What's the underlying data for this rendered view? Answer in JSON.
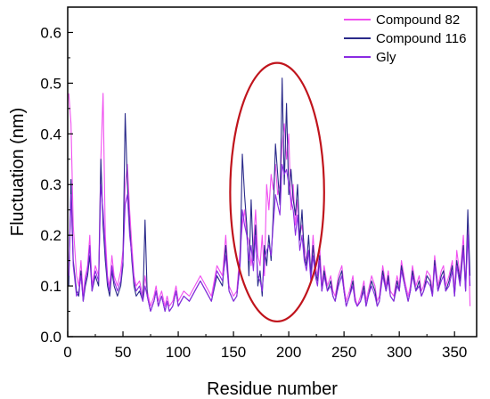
{
  "chart_data": {
    "type": "line",
    "xlabel": "Residue number",
    "ylabel": "Fluctuation (nm)",
    "xlim": [
      0,
      370
    ],
    "ylim": [
      0,
      0.65
    ],
    "xticks": [
      "0",
      "50",
      "100",
      "150",
      "200",
      "250",
      "300",
      "350"
    ],
    "yticks": [
      "0.0",
      "0.1",
      "0.2",
      "0.3",
      "0.4",
      "0.5",
      "0.6"
    ],
    "legend_position": "top-right",
    "annotation": {
      "shape": "ellipse",
      "color": "#c0141c",
      "x_range": [
        147,
        232
      ],
      "y_range": [
        0.03,
        0.54
      ]
    },
    "series": [
      {
        "name": "Compound 82",
        "color": "#f050f0",
        "x": [
          1,
          3,
          5,
          8,
          10,
          12,
          14,
          16,
          18,
          20,
          22,
          25,
          28,
          30,
          32,
          34,
          36,
          38,
          40,
          42,
          45,
          48,
          50,
          52,
          54,
          56,
          58,
          60,
          62,
          65,
          68,
          70,
          72,
          75,
          78,
          80,
          82,
          85,
          88,
          90,
          92,
          95,
          98,
          100,
          105,
          110,
          115,
          120,
          125,
          130,
          135,
          140,
          143,
          146,
          150,
          153,
          156,
          158,
          160,
          162,
          164,
          166,
          168,
          170,
          172,
          174,
          176,
          178,
          180,
          182,
          184,
          186,
          188,
          190,
          192,
          194,
          196,
          198,
          200,
          202,
          204,
          206,
          208,
          210,
          212,
          214,
          216,
          218,
          220,
          222,
          224,
          226,
          228,
          230,
          232,
          235,
          238,
          240,
          242,
          245,
          248,
          250,
          252,
          255,
          258,
          260,
          262,
          265,
          268,
          270,
          272,
          275,
          278,
          280,
          282,
          285,
          288,
          290,
          292,
          295,
          298,
          300,
          302,
          305,
          308,
          310,
          312,
          315,
          318,
          320,
          322,
          325,
          328,
          330,
          332,
          335,
          338,
          340,
          342,
          345,
          348,
          350,
          352,
          355,
          358,
          360,
          362,
          364
        ],
        "y": [
          0.48,
          0.42,
          0.22,
          0.12,
          0.1,
          0.15,
          0.08,
          0.12,
          0.14,
          0.2,
          0.1,
          0.14,
          0.12,
          0.35,
          0.48,
          0.2,
          0.12,
          0.1,
          0.16,
          0.12,
          0.1,
          0.13,
          0.17,
          0.3,
          0.34,
          0.25,
          0.18,
          0.12,
          0.1,
          0.11,
          0.08,
          0.12,
          0.09,
          0.06,
          0.08,
          0.1,
          0.07,
          0.09,
          0.06,
          0.08,
          0.06,
          0.07,
          0.1,
          0.07,
          0.09,
          0.08,
          0.1,
          0.12,
          0.1,
          0.08,
          0.14,
          0.12,
          0.2,
          0.1,
          0.08,
          0.09,
          0.17,
          0.22,
          0.25,
          0.2,
          0.19,
          0.14,
          0.18,
          0.25,
          0.16,
          0.14,
          0.2,
          0.12,
          0.3,
          0.25,
          0.32,
          0.29,
          0.34,
          0.28,
          0.3,
          0.38,
          0.42,
          0.35,
          0.4,
          0.25,
          0.3,
          0.22,
          0.27,
          0.2,
          0.22,
          0.18,
          0.15,
          0.17,
          0.13,
          0.2,
          0.14,
          0.12,
          0.18,
          0.1,
          0.14,
          0.1,
          0.12,
          0.09,
          0.08,
          0.12,
          0.14,
          0.1,
          0.07,
          0.09,
          0.12,
          0.08,
          0.06,
          0.08,
          0.11,
          0.07,
          0.09,
          0.12,
          0.1,
          0.07,
          0.08,
          0.14,
          0.1,
          0.13,
          0.09,
          0.08,
          0.12,
          0.1,
          0.15,
          0.11,
          0.08,
          0.1,
          0.14,
          0.1,
          0.12,
          0.09,
          0.1,
          0.13,
          0.12,
          0.09,
          0.16,
          0.1,
          0.13,
          0.14,
          0.1,
          0.12,
          0.15,
          0.09,
          0.17,
          0.12,
          0.2,
          0.1,
          0.22,
          0.06
        ]
      },
      {
        "name": "Compound 116",
        "color": "#2a2a8a",
        "x": [
          1,
          3,
          5,
          8,
          10,
          12,
          14,
          16,
          18,
          20,
          22,
          25,
          28,
          30,
          32,
          34,
          36,
          38,
          40,
          42,
          45,
          48,
          50,
          52,
          54,
          56,
          58,
          60,
          62,
          65,
          68,
          70,
          72,
          75,
          78,
          80,
          82,
          85,
          88,
          90,
          92,
          95,
          98,
          100,
          105,
          110,
          115,
          120,
          125,
          130,
          135,
          140,
          143,
          146,
          150,
          153,
          156,
          158,
          160,
          162,
          164,
          166,
          168,
          170,
          172,
          174,
          176,
          178,
          180,
          182,
          184,
          186,
          188,
          190,
          192,
          194,
          196,
          198,
          200,
          202,
          204,
          206,
          208,
          210,
          212,
          214,
          216,
          218,
          220,
          222,
          224,
          226,
          228,
          230,
          232,
          235,
          238,
          240,
          242,
          245,
          248,
          250,
          252,
          255,
          258,
          260,
          262,
          265,
          268,
          270,
          272,
          275,
          278,
          280,
          282,
          285,
          288,
          290,
          292,
          295,
          298,
          300,
          302,
          305,
          308,
          310,
          312,
          315,
          318,
          320,
          322,
          325,
          328,
          330,
          332,
          335,
          338,
          340,
          342,
          345,
          348,
          350,
          352,
          355,
          358,
          360,
          362,
          364
        ],
        "y": [
          0.1,
          0.31,
          0.15,
          0.09,
          0.08,
          0.13,
          0.07,
          0.1,
          0.12,
          0.16,
          0.09,
          0.12,
          0.1,
          0.35,
          0.22,
          0.15,
          0.1,
          0.08,
          0.13,
          0.1,
          0.08,
          0.1,
          0.14,
          0.44,
          0.3,
          0.22,
          0.15,
          0.1,
          0.08,
          0.09,
          0.07,
          0.23,
          0.08,
          0.05,
          0.07,
          0.09,
          0.06,
          0.08,
          0.05,
          0.07,
          0.05,
          0.06,
          0.09,
          0.06,
          0.08,
          0.07,
          0.09,
          0.11,
          0.09,
          0.07,
          0.12,
          0.1,
          0.18,
          0.09,
          0.07,
          0.08,
          0.15,
          0.36,
          0.28,
          0.22,
          0.12,
          0.27,
          0.15,
          0.22,
          0.1,
          0.13,
          0.08,
          0.18,
          0.14,
          0.2,
          0.15,
          0.24,
          0.38,
          0.32,
          0.26,
          0.51,
          0.3,
          0.46,
          0.28,
          0.33,
          0.27,
          0.24,
          0.3,
          0.19,
          0.25,
          0.16,
          0.14,
          0.2,
          0.12,
          0.18,
          0.13,
          0.11,
          0.16,
          0.09,
          0.13,
          0.09,
          0.11,
          0.08,
          0.07,
          0.11,
          0.13,
          0.09,
          0.06,
          0.08,
          0.11,
          0.07,
          0.06,
          0.07,
          0.1,
          0.06,
          0.08,
          0.11,
          0.09,
          0.06,
          0.07,
          0.13,
          0.09,
          0.12,
          0.08,
          0.07,
          0.11,
          0.09,
          0.14,
          0.1,
          0.07,
          0.09,
          0.13,
          0.09,
          0.11,
          0.08,
          0.09,
          0.12,
          0.11,
          0.08,
          0.15,
          0.09,
          0.12,
          0.13,
          0.09,
          0.11,
          0.14,
          0.08,
          0.15,
          0.11,
          0.18,
          0.09,
          0.25,
          0.12
        ]
      },
      {
        "name": "Gly",
        "color": "#8a2be2",
        "x": [
          1,
          3,
          5,
          8,
          10,
          12,
          14,
          16,
          18,
          20,
          22,
          25,
          28,
          30,
          32,
          34,
          36,
          38,
          40,
          42,
          45,
          48,
          50,
          52,
          54,
          56,
          58,
          60,
          62,
          65,
          68,
          70,
          72,
          75,
          78,
          80,
          82,
          85,
          88,
          90,
          92,
          95,
          98,
          100,
          105,
          110,
          115,
          120,
          125,
          130,
          135,
          140,
          143,
          146,
          150,
          153,
          156,
          158,
          160,
          162,
          164,
          166,
          168,
          170,
          172,
          174,
          176,
          178,
          180,
          182,
          184,
          186,
          188,
          190,
          192,
          194,
          196,
          198,
          200,
          202,
          204,
          206,
          208,
          210,
          212,
          214,
          216,
          218,
          220,
          222,
          224,
          226,
          228,
          230,
          232,
          235,
          238,
          240,
          242,
          245,
          248,
          250,
          252,
          255,
          258,
          260,
          262,
          265,
          268,
          270,
          272,
          275,
          278,
          280,
          282,
          285,
          288,
          290,
          292,
          295,
          298,
          300,
          302,
          305,
          308,
          310,
          312,
          315,
          318,
          320,
          322,
          325,
          328,
          330,
          332,
          335,
          338,
          340,
          342,
          345,
          348,
          350,
          352,
          355,
          358,
          360,
          362,
          364
        ],
        "y": [
          0.12,
          0.28,
          0.14,
          0.08,
          0.09,
          0.12,
          0.07,
          0.11,
          0.13,
          0.18,
          0.09,
          0.13,
          0.11,
          0.3,
          0.25,
          0.17,
          0.11,
          0.09,
          0.14,
          0.11,
          0.09,
          0.11,
          0.15,
          0.26,
          0.28,
          0.2,
          0.16,
          0.11,
          0.09,
          0.1,
          0.07,
          0.1,
          0.08,
          0.05,
          0.07,
          0.09,
          0.06,
          0.08,
          0.05,
          0.07,
          0.05,
          0.06,
          0.09,
          0.06,
          0.08,
          0.07,
          0.09,
          0.11,
          0.09,
          0.07,
          0.13,
          0.11,
          0.16,
          0.09,
          0.07,
          0.08,
          0.14,
          0.25,
          0.22,
          0.2,
          0.15,
          0.18,
          0.13,
          0.2,
          0.12,
          0.11,
          0.09,
          0.15,
          0.17,
          0.18,
          0.16,
          0.22,
          0.28,
          0.26,
          0.24,
          0.34,
          0.32,
          0.33,
          0.3,
          0.27,
          0.25,
          0.2,
          0.24,
          0.17,
          0.2,
          0.15,
          0.13,
          0.17,
          0.11,
          0.16,
          0.12,
          0.1,
          0.15,
          0.09,
          0.12,
          0.09,
          0.1,
          0.08,
          0.07,
          0.1,
          0.12,
          0.09,
          0.06,
          0.08,
          0.1,
          0.07,
          0.06,
          0.07,
          0.09,
          0.06,
          0.08,
          0.1,
          0.08,
          0.06,
          0.07,
          0.12,
          0.09,
          0.11,
          0.08,
          0.07,
          0.1,
          0.09,
          0.13,
          0.1,
          0.07,
          0.09,
          0.12,
          0.09,
          0.1,
          0.08,
          0.09,
          0.11,
          0.1,
          0.08,
          0.14,
          0.09,
          0.11,
          0.12,
          0.09,
          0.1,
          0.13,
          0.08,
          0.14,
          0.1,
          0.17,
          0.09,
          0.2,
          0.1
        ]
      }
    ]
  }
}
